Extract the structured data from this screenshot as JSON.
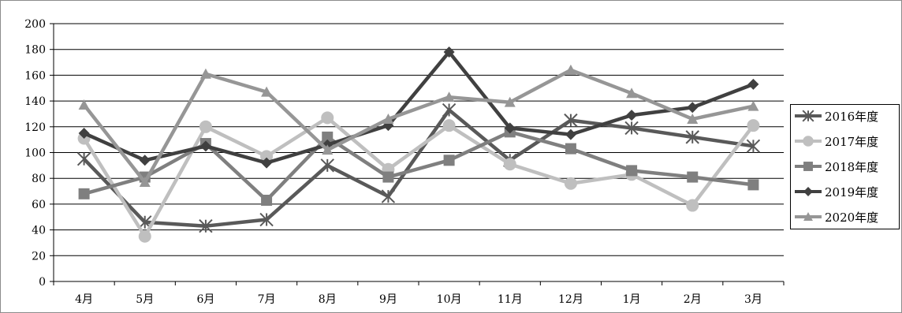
{
  "chart_data": {
    "type": "line",
    "title": "",
    "xlabel": "",
    "ylabel": "",
    "categories": [
      "4月",
      "5月",
      "6月",
      "7月",
      "8月",
      "9月",
      "10月",
      "11月",
      "12月",
      "1月",
      "2月",
      "3月"
    ],
    "ylim": [
      0,
      200
    ],
    "yticks": [
      0,
      20,
      40,
      60,
      80,
      100,
      120,
      140,
      160,
      180,
      200
    ],
    "grid": true,
    "legend_position": "right",
    "series": [
      {
        "name": "2016年度",
        "marker": "asterisk",
        "color": "#595959",
        "values": [
          95,
          46,
          43,
          48,
          90,
          66,
          133,
          94,
          125,
          119,
          112,
          105
        ]
      },
      {
        "name": "2017年度",
        "marker": "circle",
        "color": "#bfbfbf",
        "values": [
          111,
          35,
          120,
          97,
          127,
          87,
          121,
          91,
          76,
          83,
          59,
          121
        ]
      },
      {
        "name": "2018年度",
        "marker": "square",
        "color": "#7f7f7f",
        "values": [
          68,
          81,
          107,
          63,
          112,
          81,
          94,
          116,
          103,
          86,
          81,
          75
        ]
      },
      {
        "name": "2019年度",
        "marker": "diamond",
        "color": "#404040",
        "values": [
          115,
          94,
          105,
          92,
          106,
          121,
          178,
          119,
          114,
          129,
          135,
          153
        ]
      },
      {
        "name": "2020年度",
        "marker": "triangle",
        "color": "#969696",
        "values": [
          137,
          77,
          161,
          147,
          102,
          126,
          143,
          139,
          164,
          146,
          126,
          136
        ]
      }
    ]
  }
}
